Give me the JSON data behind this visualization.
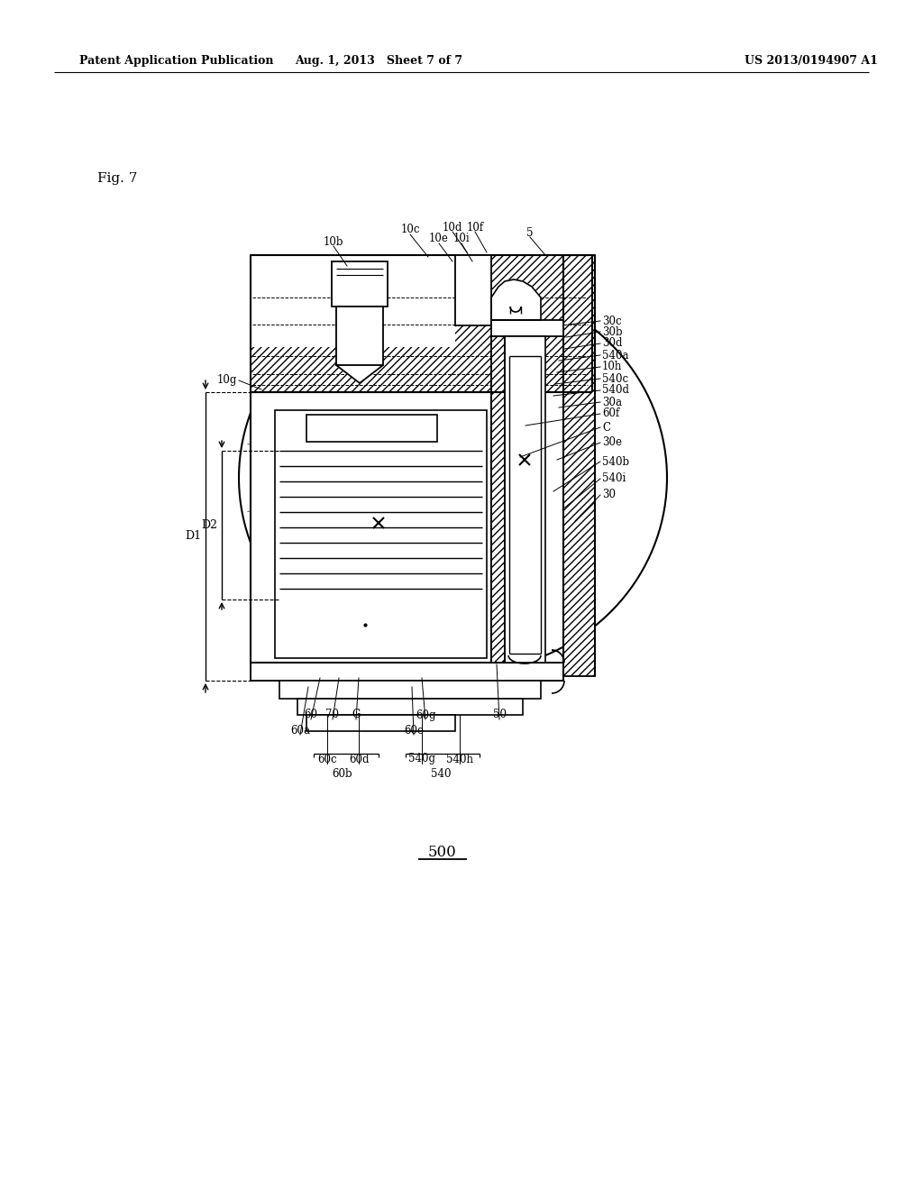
{
  "header_left": "Patent Application Publication",
  "header_mid": "Aug. 1, 2013   Sheet 7 of 7",
  "header_right": "US 2013/0194907 A1",
  "fig_label": "Fig. 7",
  "bottom_label": "500",
  "bg": "#ffffff",
  "lc": "#000000",
  "top_labels": [
    [
      "10b",
      370,
      268,
      385,
      295
    ],
    [
      "10c",
      455,
      255,
      475,
      285
    ],
    [
      "10d",
      502,
      252,
      518,
      280
    ],
    [
      "10e",
      487,
      265,
      502,
      290
    ],
    [
      "10f",
      527,
      252,
      540,
      280
    ],
    [
      "10i",
      512,
      265,
      524,
      290
    ],
    [
      "5",
      588,
      258,
      605,
      283
    ]
  ],
  "right_labels": [
    [
      "30c",
      668,
      356,
      630,
      360
    ],
    [
      "30b",
      668,
      368,
      628,
      374
    ],
    [
      "30d",
      668,
      381,
      626,
      387
    ],
    [
      "540a",
      668,
      394,
      620,
      400
    ],
    [
      "10h",
      668,
      407,
      618,
      413
    ],
    [
      "540c",
      668,
      420,
      616,
      426
    ],
    [
      "540d",
      668,
      433,
      614,
      439
    ],
    [
      "30a",
      668,
      446,
      620,
      452
    ],
    [
      "60f",
      668,
      459,
      583,
      472
    ],
    [
      "C",
      668,
      474,
      577,
      507
    ],
    [
      "30e",
      668,
      491,
      618,
      510
    ],
    [
      "540b",
      668,
      512,
      614,
      545
    ],
    [
      "540i",
      668,
      531,
      624,
      565
    ],
    [
      "30",
      668,
      549,
      638,
      578
    ]
  ],
  "left_label": [
    "10g",
    263,
    422,
    290,
    432
  ],
  "bot_labels_row1": [
    [
      "60",
      345,
      793,
      355,
      752
    ],
    [
      "70",
      369,
      793,
      376,
      752
    ],
    [
      "G",
      395,
      793,
      398,
      752
    ],
    [
      "60g",
      472,
      793,
      468,
      752
    ],
    [
      "50",
      554,
      793,
      551,
      737
    ],
    [
      "60a",
      333,
      810,
      342,
      762
    ],
    [
      "60e",
      459,
      810,
      457,
      762
    ]
  ]
}
